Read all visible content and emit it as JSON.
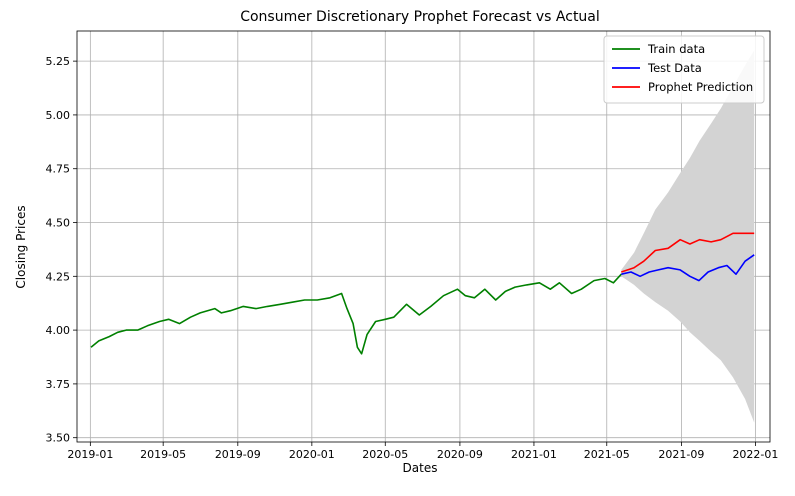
{
  "chart_data": {
    "type": "line",
    "title": "Consumer Discretionary Prophet Forecast vs Actual",
    "xlabel": "Dates",
    "ylabel": "Closing Prices",
    "xlim": [
      "2018-12-10",
      "2022-01-25"
    ],
    "ylim": [
      3.48,
      5.39
    ],
    "grid": true,
    "legend_position": "top-right",
    "x_ticks": [
      "2019-01",
      "2019-05",
      "2019-09",
      "2020-01",
      "2020-05",
      "2020-09",
      "2021-01",
      "2021-05",
      "2021-09",
      "2022-01"
    ],
    "y_ticks": [
      "3.50",
      "3.75",
      "4.00",
      "4.25",
      "4.50",
      "4.75",
      "5.00",
      "5.25"
    ],
    "series": [
      {
        "name": "Train data",
        "color": "#008000",
        "points": [
          [
            "2019-01-02",
            3.92
          ],
          [
            "2019-01-15",
            3.95
          ],
          [
            "2019-02-01",
            3.97
          ],
          [
            "2019-02-15",
            3.99
          ],
          [
            "2019-03-01",
            4.0
          ],
          [
            "2019-03-20",
            4.0
          ],
          [
            "2019-04-05",
            4.02
          ],
          [
            "2019-04-25",
            4.04
          ],
          [
            "2019-05-10",
            4.05
          ],
          [
            "2019-05-28",
            4.03
          ],
          [
            "2019-06-15",
            4.06
          ],
          [
            "2019-07-01",
            4.08
          ],
          [
            "2019-07-25",
            4.1
          ],
          [
            "2019-08-05",
            4.08
          ],
          [
            "2019-08-20",
            4.09
          ],
          [
            "2019-09-10",
            4.11
          ],
          [
            "2019-10-01",
            4.1
          ],
          [
            "2019-10-20",
            4.11
          ],
          [
            "2019-11-10",
            4.12
          ],
          [
            "2019-12-01",
            4.13
          ],
          [
            "2019-12-20",
            4.14
          ],
          [
            "2020-01-10",
            4.14
          ],
          [
            "2020-01-31",
            4.15
          ],
          [
            "2020-02-19",
            4.17
          ],
          [
            "2020-02-28",
            4.1
          ],
          [
            "2020-03-09",
            4.03
          ],
          [
            "2020-03-16",
            3.92
          ],
          [
            "2020-03-23",
            3.89
          ],
          [
            "2020-04-01",
            3.98
          ],
          [
            "2020-04-15",
            4.04
          ],
          [
            "2020-05-01",
            4.05
          ],
          [
            "2020-05-15",
            4.06
          ],
          [
            "2020-06-05",
            4.12
          ],
          [
            "2020-06-26",
            4.07
          ],
          [
            "2020-07-15",
            4.11
          ],
          [
            "2020-08-05",
            4.16
          ],
          [
            "2020-08-28",
            4.19
          ],
          [
            "2020-09-10",
            4.16
          ],
          [
            "2020-09-25",
            4.15
          ],
          [
            "2020-10-12",
            4.19
          ],
          [
            "2020-10-30",
            4.14
          ],
          [
            "2020-11-15",
            4.18
          ],
          [
            "2020-12-01",
            4.2
          ],
          [
            "2020-12-20",
            4.21
          ],
          [
            "2021-01-10",
            4.22
          ],
          [
            "2021-01-28",
            4.19
          ],
          [
            "2021-02-12",
            4.22
          ],
          [
            "2021-03-04",
            4.17
          ],
          [
            "2021-03-20",
            4.19
          ],
          [
            "2021-04-10",
            4.23
          ],
          [
            "2021-04-28",
            4.24
          ],
          [
            "2021-05-12",
            4.22
          ],
          [
            "2021-05-25",
            4.26
          ]
        ]
      },
      {
        "name": "Test Data",
        "color": "#0000ff",
        "points": [
          [
            "2021-05-25",
            4.26
          ],
          [
            "2021-06-10",
            4.27
          ],
          [
            "2021-06-25",
            4.25
          ],
          [
            "2021-07-10",
            4.27
          ],
          [
            "2021-07-25",
            4.28
          ],
          [
            "2021-08-10",
            4.29
          ],
          [
            "2021-08-30",
            4.28
          ],
          [
            "2021-09-15",
            4.25
          ],
          [
            "2021-09-30",
            4.23
          ],
          [
            "2021-10-15",
            4.27
          ],
          [
            "2021-11-01",
            4.29
          ],
          [
            "2021-11-15",
            4.3
          ],
          [
            "2021-11-30",
            4.26
          ],
          [
            "2021-12-15",
            4.32
          ],
          [
            "2021-12-30",
            4.35
          ]
        ]
      },
      {
        "name": "Prophet Prediction",
        "color": "#ff0000",
        "points": [
          [
            "2021-05-25",
            4.27
          ],
          [
            "2021-06-15",
            4.29
          ],
          [
            "2021-07-01",
            4.32
          ],
          [
            "2021-07-20",
            4.37
          ],
          [
            "2021-08-10",
            4.38
          ],
          [
            "2021-08-30",
            4.42
          ],
          [
            "2021-09-15",
            4.4
          ],
          [
            "2021-10-01",
            4.42
          ],
          [
            "2021-10-20",
            4.41
          ],
          [
            "2021-11-05",
            4.42
          ],
          [
            "2021-11-25",
            4.45
          ],
          [
            "2021-12-15",
            4.45
          ],
          [
            "2021-12-30",
            4.45
          ]
        ]
      }
    ],
    "uncertainty_band": {
      "color": "#d3d3d3",
      "points": [
        [
          "2021-05-25",
          4.28,
          4.25
        ],
        [
          "2021-06-15",
          4.36,
          4.21
        ],
        [
          "2021-07-01",
          4.45,
          4.17
        ],
        [
          "2021-07-20",
          4.56,
          4.13
        ],
        [
          "2021-08-10",
          4.64,
          4.09
        ],
        [
          "2021-08-30",
          4.73,
          4.04
        ],
        [
          "2021-09-15",
          4.8,
          3.99
        ],
        [
          "2021-10-01",
          4.88,
          3.95
        ],
        [
          "2021-10-20",
          4.96,
          3.9
        ],
        [
          "2021-11-05",
          5.03,
          3.86
        ],
        [
          "2021-11-25",
          5.13,
          3.78
        ],
        [
          "2021-12-15",
          5.23,
          3.68
        ],
        [
          "2021-12-30",
          5.3,
          3.57
        ]
      ]
    }
  }
}
